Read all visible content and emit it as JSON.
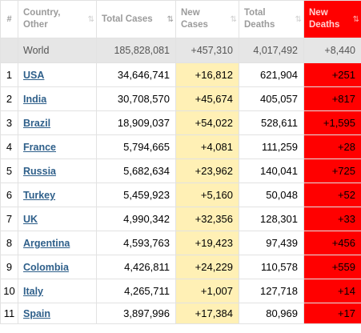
{
  "headers": {
    "rank": "#",
    "country": "Country, Other",
    "total_cases": "Total Cases",
    "new_cases": "New Cases",
    "total_deaths": "Total Deaths",
    "new_deaths": "New Deaths"
  },
  "sort_icons": {
    "inactive": "⇅",
    "active": "⇅"
  },
  "world": {
    "label": "World",
    "total_cases": "185,828,081",
    "new_cases": "+457,310",
    "total_deaths": "4,017,492",
    "new_deaths": "+8,440"
  },
  "rows": [
    {
      "rank": "1",
      "country": "USA",
      "total_cases": "34,646,741",
      "new_cases": "+16,812",
      "total_deaths": "621,904",
      "new_deaths": "+251"
    },
    {
      "rank": "2",
      "country": "India",
      "total_cases": "30,708,570",
      "new_cases": "+45,674",
      "total_deaths": "405,057",
      "new_deaths": "+817"
    },
    {
      "rank": "3",
      "country": "Brazil",
      "total_cases": "18,909,037",
      "new_cases": "+54,022",
      "total_deaths": "528,611",
      "new_deaths": "+1,595"
    },
    {
      "rank": "4",
      "country": "France",
      "total_cases": "5,794,665",
      "new_cases": "+4,081",
      "total_deaths": "111,259",
      "new_deaths": "+28"
    },
    {
      "rank": "5",
      "country": "Russia",
      "total_cases": "5,682,634",
      "new_cases": "+23,962",
      "total_deaths": "140,041",
      "new_deaths": "+725"
    },
    {
      "rank": "6",
      "country": "Turkey",
      "total_cases": "5,459,923",
      "new_cases": "+5,160",
      "total_deaths": "50,048",
      "new_deaths": "+52"
    },
    {
      "rank": "7",
      "country": "UK",
      "total_cases": "4,990,342",
      "new_cases": "+32,356",
      "total_deaths": "128,301",
      "new_deaths": "+33"
    },
    {
      "rank": "8",
      "country": "Argentina",
      "total_cases": "4,593,763",
      "new_cases": "+19,423",
      "total_deaths": "97,439",
      "new_deaths": "+456"
    },
    {
      "rank": "9",
      "country": "Colombia",
      "total_cases": "4,426,811",
      "new_cases": "+24,229",
      "total_deaths": "110,578",
      "new_deaths": "+559"
    },
    {
      "rank": "10",
      "country": "Italy",
      "total_cases": "4,265,711",
      "new_cases": "+1,007",
      "total_deaths": "127,718",
      "new_deaths": "+14"
    },
    {
      "rank": "11",
      "country": "Spain",
      "total_cases": "3,897,996",
      "new_cases": "+17,384",
      "total_deaths": "80,969",
      "new_deaths": "+17"
    }
  ],
  "colors": {
    "new_cases_bg": "#fff0b5",
    "new_deaths_bg": "#ff0000",
    "world_row_bg": "#e6e6e6",
    "country_link": "#2e5f8a"
  }
}
